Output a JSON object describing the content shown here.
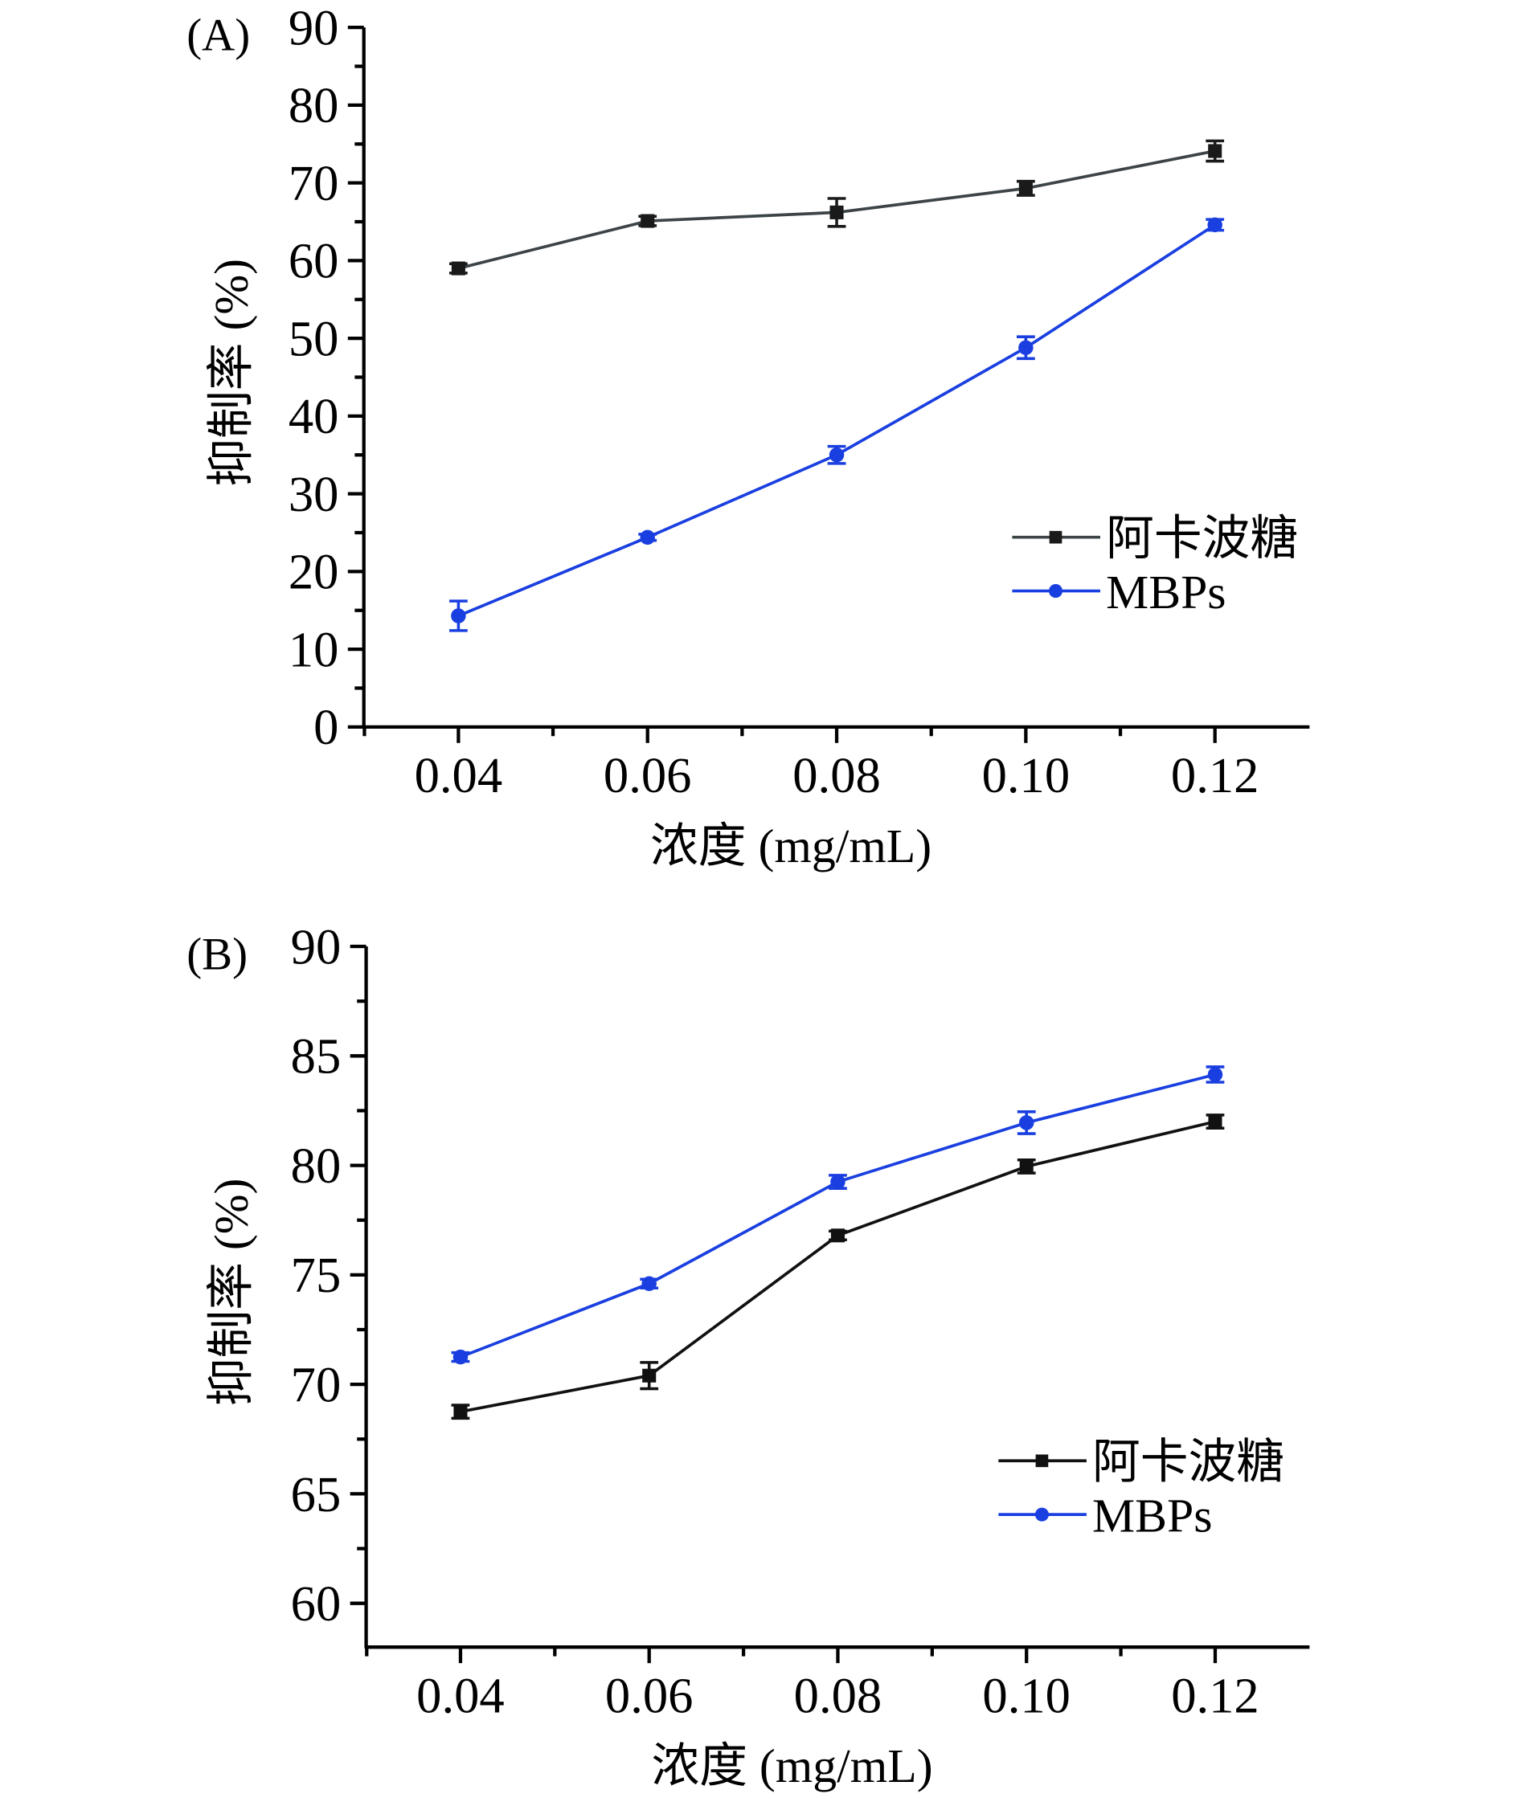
{
  "chart_data": [
    {
      "type": "line",
      "panel_label": "(A)",
      "title": "",
      "xlabel": "浓度 (mg/mL)",
      "ylabel": "抑制率 (%)",
      "categories": [
        "0.04",
        "0.06",
        "0.08",
        "0.10",
        "0.12"
      ],
      "x": [
        0.04,
        0.06,
        0.08,
        0.1,
        0.12
      ],
      "xlim": [
        0.03,
        0.13
      ],
      "ylim": [
        0,
        90
      ],
      "yticks": [
        0,
        10,
        20,
        30,
        40,
        50,
        60,
        70,
        80,
        90
      ],
      "yticklabels": [
        "0",
        "10",
        "20",
        "30",
        "40",
        "50",
        "60",
        "70",
        "80",
        "90"
      ],
      "grid": false,
      "legend_position": "center-right",
      "series": [
        {
          "name": "阿卡波糖",
          "color": "#1a1a1a",
          "line_color": "#3c4448",
          "marker": "square",
          "values": [
            59.0,
            65.1,
            66.2,
            69.3,
            74.1
          ],
          "errors": [
            0.6,
            0.6,
            1.8,
            0.9,
            1.3
          ]
        },
        {
          "name": "MBPs",
          "color": "#1a3fe0",
          "line_color": "#1a3fe0",
          "marker": "circle",
          "values": [
            14.3,
            24.4,
            35.0,
            48.8,
            64.6
          ],
          "errors": [
            1.9,
            0.4,
            1.1,
            1.4,
            0.7
          ]
        }
      ]
    },
    {
      "type": "line",
      "panel_label": "(B)",
      "title": "",
      "xlabel": "浓度 (mg/mL)",
      "ylabel": "抑制率 (%)",
      "categories": [
        "0.04",
        "0.06",
        "0.08",
        "0.10",
        "0.12"
      ],
      "x": [
        0.04,
        0.06,
        0.08,
        0.1,
        0.12
      ],
      "xlim": [
        0.03,
        0.13
      ],
      "ylim": [
        58,
        90
      ],
      "yticks": [
        60,
        65,
        70,
        75,
        80,
        85,
        90
      ],
      "yticklabels": [
        "60",
        "65",
        "70",
        "75",
        "80",
        "85",
        "90"
      ],
      "grid": false,
      "legend_position": "lower-right",
      "series": [
        {
          "name": "阿卡波糖",
          "color": "#111111",
          "line_color": "#111111",
          "marker": "square",
          "values": [
            68.75,
            70.4,
            76.8,
            79.95,
            82.0
          ],
          "errors": [
            0.3,
            0.6,
            0.2,
            0.3,
            0.3
          ]
        },
        {
          "name": "MBPs",
          "color": "#1a3fe0",
          "line_color": "#1a3fe0",
          "marker": "circle",
          "values": [
            71.25,
            74.6,
            79.25,
            81.95,
            84.15
          ],
          "errors": [
            0.2,
            0.2,
            0.3,
            0.5,
            0.35
          ]
        }
      ]
    }
  ]
}
